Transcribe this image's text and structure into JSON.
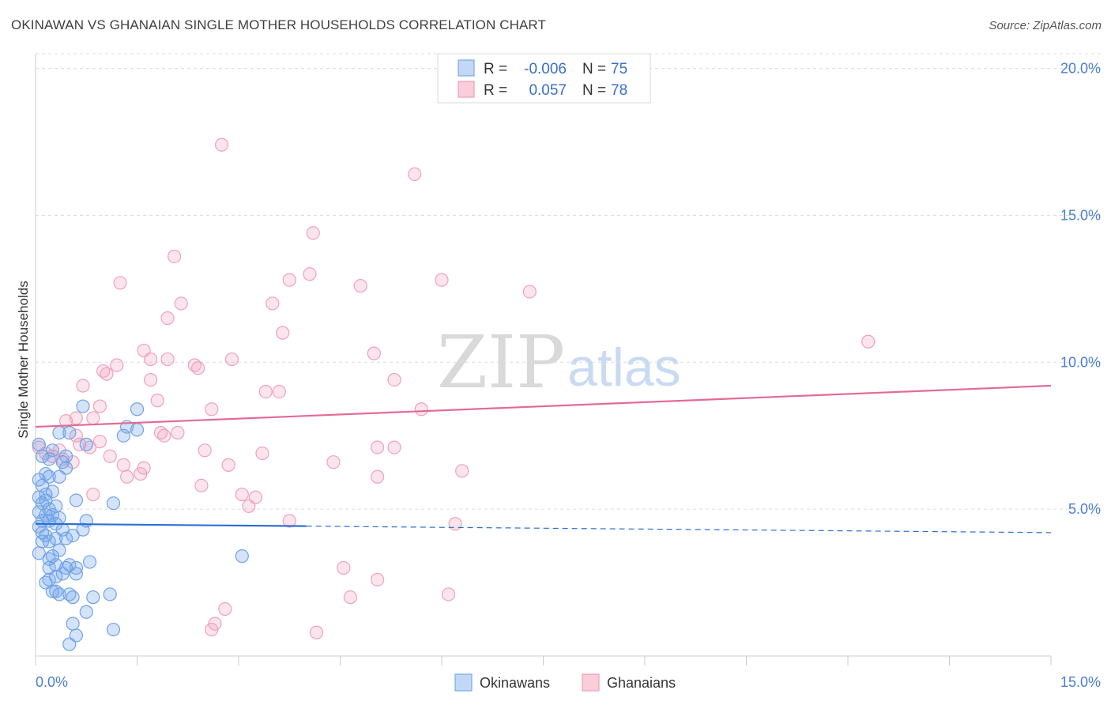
{
  "title": "OKINAWAN VS GHANAIAN SINGLE MOTHER HOUSEHOLDS CORRELATION CHART",
  "source": "Source: ZipAtlas.com",
  "watermark": {
    "zip": "ZIP",
    "atlas": "atlas"
  },
  "colors": {
    "okinawan": "#6fa3e8",
    "okinawan_line": "#2b6fd1",
    "ghanaian": "#f0a0bb",
    "ghanaian_line": "#e46a93",
    "axis_text": "#4a7fd0"
  },
  "legend": {
    "rows": [
      {
        "r_label": "R =",
        "r_value": "-0.006",
        "n_label": "N =",
        "n_value": "75"
      },
      {
        "r_label": "R =",
        "r_value": "0.057",
        "n_label": "N =",
        "n_value": "78"
      }
    ]
  },
  "chart_data": {
    "type": "scatter",
    "title": "OKINAWAN VS GHANAIAN SINGLE MOTHER HOUSEHOLDS CORRELATION CHART",
    "xlabel": "",
    "ylabel": "Single Mother Households",
    "xlim": [
      0,
      15
    ],
    "ylim": [
      0,
      20.5
    ],
    "x_tick_labels": [
      "0.0%",
      "15.0%"
    ],
    "y_ticks": [
      5,
      10,
      15,
      20
    ],
    "y_tick_labels": [
      "5.0%",
      "10.0%",
      "15.0%",
      "20.0%"
    ],
    "series": [
      {
        "name": "Okinawans",
        "r": -0.006,
        "n": 75,
        "trend": {
          "x0": 0,
          "y0": 4.5,
          "x1": 15,
          "y1": 4.2,
          "solid_until_x": 4.0
        },
        "points": [
          [
            0.05,
            7.2
          ],
          [
            0.1,
            6.8
          ],
          [
            0.15,
            6.2
          ],
          [
            0.05,
            6.0
          ],
          [
            0.2,
            6.1
          ],
          [
            0.1,
            5.8
          ],
          [
            0.15,
            5.5
          ],
          [
            0.05,
            5.4
          ],
          [
            0.25,
            5.6
          ],
          [
            0.1,
            5.2
          ],
          [
            0.2,
            5.0
          ],
          [
            0.3,
            5.1
          ],
          [
            0.05,
            4.9
          ],
          [
            0.15,
            4.8
          ],
          [
            0.25,
            4.8
          ],
          [
            0.1,
            4.6
          ],
          [
            0.2,
            4.6
          ],
          [
            0.3,
            4.5
          ],
          [
            0.35,
            4.7
          ],
          [
            0.05,
            4.4
          ],
          [
            0.4,
            4.3
          ],
          [
            0.15,
            4.1
          ],
          [
            0.3,
            4.0
          ],
          [
            0.2,
            3.9
          ],
          [
            0.1,
            3.9
          ],
          [
            0.35,
            3.6
          ],
          [
            0.25,
            3.4
          ],
          [
            0.2,
            3.3
          ],
          [
            0.3,
            3.1
          ],
          [
            0.45,
            3.0
          ],
          [
            0.5,
            3.1
          ],
          [
            0.4,
            2.8
          ],
          [
            0.6,
            2.8
          ],
          [
            0.3,
            2.7
          ],
          [
            0.2,
            2.6
          ],
          [
            0.15,
            2.5
          ],
          [
            0.25,
            2.2
          ],
          [
            0.5,
            2.1
          ],
          [
            0.55,
            2.0
          ],
          [
            0.35,
            2.1
          ],
          [
            0.85,
            2.0
          ],
          [
            1.1,
            2.1
          ],
          [
            0.75,
            1.5
          ],
          [
            0.55,
            1.1
          ],
          [
            1.15,
            0.9
          ],
          [
            0.6,
            0.7
          ],
          [
            0.5,
            0.4
          ],
          [
            0.7,
            8.5
          ],
          [
            0.75,
            7.2
          ],
          [
            1.5,
            8.4
          ],
          [
            1.3,
            7.5
          ],
          [
            1.5,
            7.7
          ],
          [
            1.35,
            7.8
          ],
          [
            0.35,
            7.6
          ],
          [
            0.5,
            7.6
          ],
          [
            0.45,
            6.8
          ],
          [
            0.4,
            6.6
          ],
          [
            0.45,
            6.4
          ],
          [
            0.25,
            7.0
          ],
          [
            0.2,
            6.7
          ],
          [
            0.6,
            5.3
          ],
          [
            1.15,
            5.2
          ],
          [
            0.75,
            4.6
          ],
          [
            0.7,
            4.3
          ],
          [
            0.8,
            3.2
          ],
          [
            0.6,
            3.0
          ],
          [
            3.05,
            3.4
          ],
          [
            0.05,
            3.5
          ],
          [
            0.3,
            2.2
          ],
          [
            0.55,
            4.1
          ],
          [
            0.45,
            4.0
          ],
          [
            0.1,
            4.2
          ],
          [
            0.2,
            3.0
          ],
          [
            0.35,
            6.1
          ],
          [
            0.15,
            5.3
          ]
        ]
      },
      {
        "name": "Ghanaians",
        "r": 0.057,
        "n": 78,
        "trend": {
          "x0": 0,
          "y0": 7.8,
          "x1": 15,
          "y1": 9.2
        },
        "points": [
          [
            2.75,
            17.4
          ],
          [
            5.6,
            16.4
          ],
          [
            4.1,
            14.4
          ],
          [
            2.05,
            13.6
          ],
          [
            4.05,
            13.0
          ],
          [
            1.25,
            12.7
          ],
          [
            3.75,
            12.8
          ],
          [
            4.8,
            12.6
          ],
          [
            6.0,
            12.8
          ],
          [
            7.3,
            12.4
          ],
          [
            2.15,
            12.0
          ],
          [
            3.5,
            12.0
          ],
          [
            1.95,
            11.5
          ],
          [
            3.65,
            11.0
          ],
          [
            12.3,
            10.7
          ],
          [
            1.6,
            10.4
          ],
          [
            1.7,
            10.1
          ],
          [
            1.95,
            10.1
          ],
          [
            2.9,
            10.1
          ],
          [
            5.0,
            10.3
          ],
          [
            1.2,
            9.9
          ],
          [
            1.0,
            9.7
          ],
          [
            1.05,
            9.6
          ],
          [
            2.35,
            9.9
          ],
          [
            2.4,
            9.8
          ],
          [
            1.7,
            9.4
          ],
          [
            5.3,
            9.4
          ],
          [
            0.7,
            9.2
          ],
          [
            3.4,
            9.0
          ],
          [
            3.6,
            9.0
          ],
          [
            1.8,
            8.7
          ],
          [
            0.95,
            8.5
          ],
          [
            2.6,
            8.4
          ],
          [
            5.7,
            8.4
          ],
          [
            0.45,
            8.0
          ],
          [
            0.6,
            8.1
          ],
          [
            0.85,
            8.1
          ],
          [
            0.6,
            7.5
          ],
          [
            1.85,
            7.6
          ],
          [
            1.9,
            7.5
          ],
          [
            2.1,
            7.6
          ],
          [
            0.65,
            7.2
          ],
          [
            0.95,
            7.3
          ],
          [
            0.8,
            7.1
          ],
          [
            2.5,
            7.0
          ],
          [
            3.35,
            6.9
          ],
          [
            5.05,
            7.1
          ],
          [
            5.3,
            7.1
          ],
          [
            0.35,
            7.0
          ],
          [
            0.25,
            6.8
          ],
          [
            0.55,
            6.6
          ],
          [
            1.1,
            6.8
          ],
          [
            1.3,
            6.5
          ],
          [
            1.6,
            6.4
          ],
          [
            2.85,
            6.5
          ],
          [
            4.4,
            6.6
          ],
          [
            1.35,
            6.1
          ],
          [
            1.55,
            6.2
          ],
          [
            5.05,
            6.1
          ],
          [
            6.3,
            6.3
          ],
          [
            2.45,
            5.8
          ],
          [
            3.05,
            5.5
          ],
          [
            3.25,
            5.4
          ],
          [
            0.85,
            5.5
          ],
          [
            3.15,
            5.1
          ],
          [
            3.75,
            4.6
          ],
          [
            6.2,
            4.5
          ],
          [
            4.55,
            3.0
          ],
          [
            5.05,
            2.6
          ],
          [
            4.65,
            2.0
          ],
          [
            6.1,
            2.1
          ],
          [
            2.8,
            1.6
          ],
          [
            2.65,
            1.1
          ],
          [
            2.6,
            0.9
          ],
          [
            4.15,
            0.8
          ],
          [
            0.05,
            7.1
          ],
          [
            0.15,
            6.9
          ],
          [
            0.4,
            6.7
          ]
        ]
      }
    ]
  },
  "bottom_legend": {
    "okinawans": "Okinawans",
    "ghanaians": "Ghanaians"
  }
}
